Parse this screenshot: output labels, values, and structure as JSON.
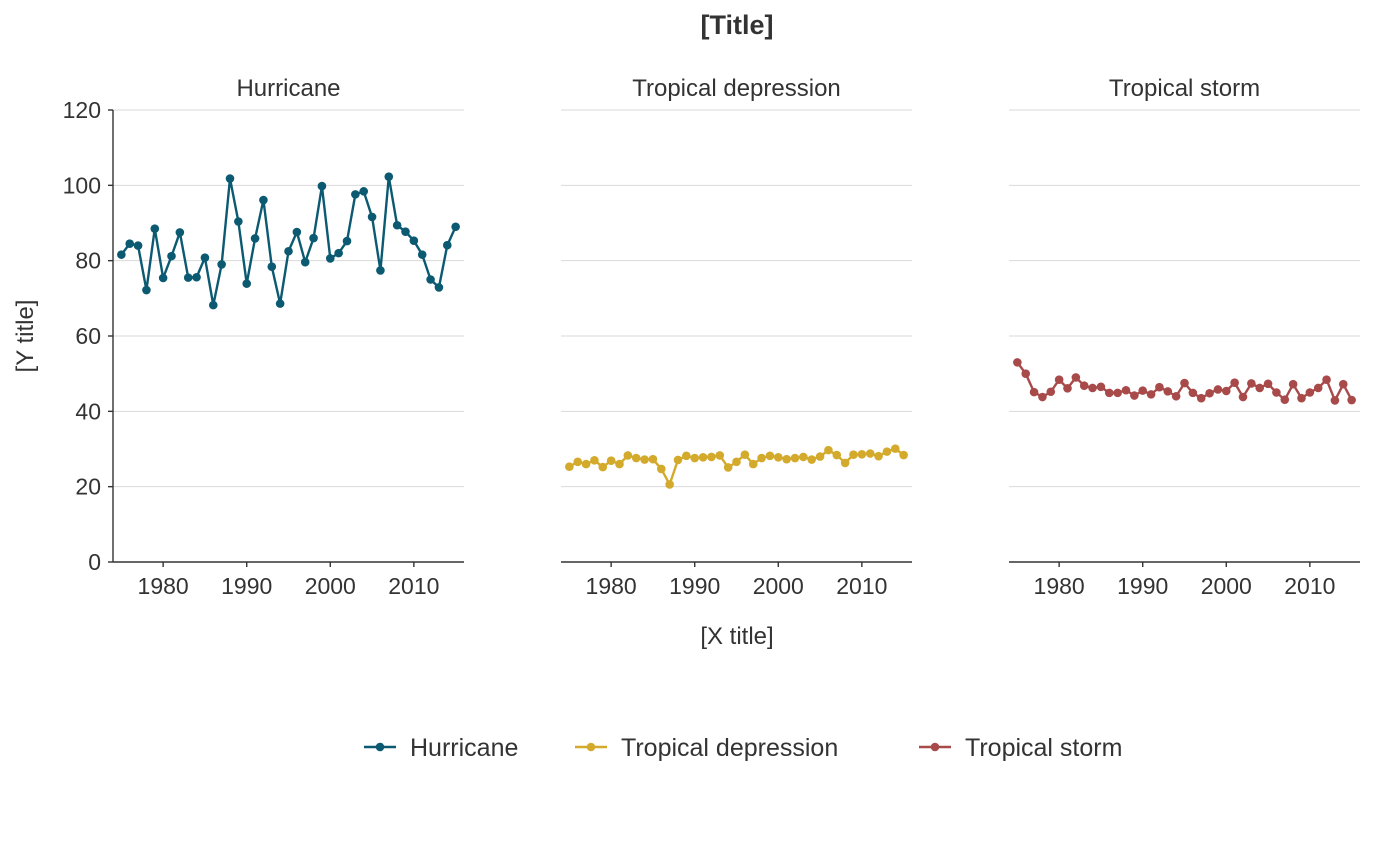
{
  "chart_data": {
    "type": "line",
    "title": "[Title]",
    "xlabel": "[X title]",
    "ylabel": "[Y title]",
    "ylim": [
      0,
      120
    ],
    "xlim": [
      1974,
      2016
    ],
    "y_ticks": [
      0,
      20,
      40,
      60,
      80,
      100,
      120
    ],
    "x_ticks": [
      1980,
      1990,
      2000,
      2010
    ],
    "grid": "horizontal",
    "legend_position": "bottom",
    "x": [
      1975,
      1976,
      1977,
      1978,
      1979,
      1980,
      1981,
      1982,
      1983,
      1984,
      1985,
      1986,
      1987,
      1988,
      1989,
      1990,
      1991,
      1992,
      1993,
      1994,
      1995,
      1996,
      1997,
      1998,
      1999,
      2000,
      2001,
      2002,
      2003,
      2004,
      2005,
      2006,
      2007,
      2008,
      2009,
      2010,
      2011,
      2012,
      2013,
      2014,
      2015
    ],
    "series": [
      {
        "name": "Hurricane",
        "color": "#0b5a72",
        "values": [
          81.6,
          84.5,
          84.0,
          72.2,
          88.5,
          75.4,
          81.2,
          87.5,
          75.5,
          75.6,
          80.8,
          68.2,
          79.0,
          101.8,
          90.4,
          73.9,
          85.9,
          96.1,
          78.4,
          68.6,
          82.5,
          87.6,
          79.6,
          86.0,
          99.8,
          80.6,
          82.0,
          85.2,
          97.6,
          98.4,
          91.6,
          77.4,
          102.3,
          89.4,
          87.7,
          85.3,
          81.6,
          75.0,
          72.9,
          84.1,
          89.0
        ]
      },
      {
        "name": "Tropical depression",
        "color": "#d4aa2c",
        "values": [
          25.3,
          26.6,
          26.0,
          27.0,
          25.2,
          26.9,
          26.0,
          28.3,
          27.6,
          27.2,
          27.3,
          24.7,
          20.6,
          27.1,
          28.2,
          27.6,
          27.8,
          27.9,
          28.3,
          25.1,
          26.6,
          28.5,
          26.0,
          27.6,
          28.2,
          27.8,
          27.3,
          27.6,
          27.9,
          27.2,
          28.0,
          29.7,
          28.4,
          26.3,
          28.5,
          28.6,
          28.8,
          28.1,
          29.3,
          30.1,
          28.4
        ]
      },
      {
        "name": "Tropical storm",
        "color": "#a84a4a",
        "values": [
          53.0,
          50.0,
          45.1,
          43.8,
          45.2,
          48.4,
          46.1,
          49.0,
          46.8,
          46.2,
          46.5,
          44.9,
          44.9,
          45.6,
          44.2,
          45.5,
          44.5,
          46.4,
          45.3,
          44.0,
          47.5,
          44.9,
          43.5,
          44.8,
          45.8,
          45.4,
          47.6,
          43.8,
          47.4,
          46.2,
          47.3,
          45.0,
          43.1,
          47.2,
          43.5,
          45.0,
          46.2,
          48.4,
          42.9,
          47.2,
          43.0
        ]
      }
    ]
  }
}
